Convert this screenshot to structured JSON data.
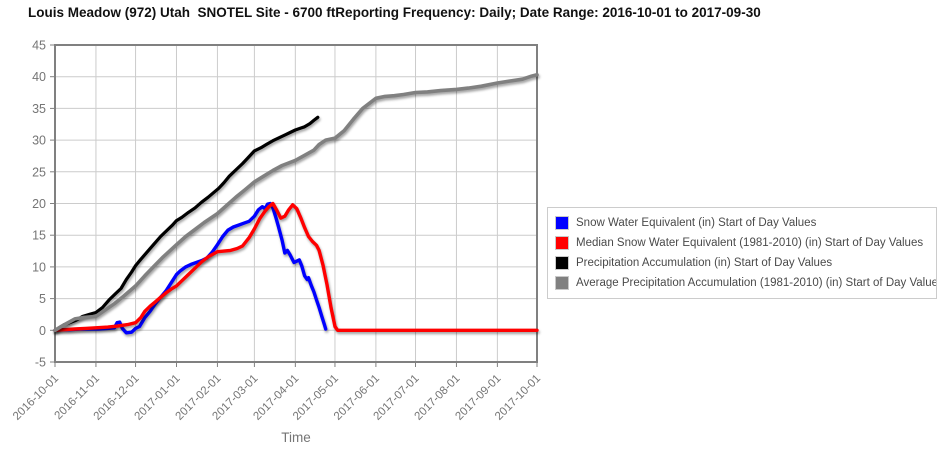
{
  "title": "Louis Meadow (972) Utah  SNOTEL Site - 6700 ftReporting Frequency: Daily; Date Range: 2016-10-01 to 2017-09-30",
  "chart_data": {
    "type": "line",
    "xlabel": "Time",
    "ylabel": "",
    "xlim": [
      "2016-10-01",
      "2017-10-01"
    ],
    "ylim": [
      -5,
      45
    ],
    "grid": true,
    "legend_position": "right",
    "x_ticks": [
      "2016-10-01",
      "2016-11-01",
      "2016-12-01",
      "2017-01-01",
      "2017-02-01",
      "2017-03-01",
      "2017-04-01",
      "2017-05-01",
      "2017-06-01",
      "2017-07-01",
      "2017-08-01",
      "2017-09-01",
      "2017-10-01"
    ],
    "y_ticks": [
      45,
      40,
      35,
      30,
      25,
      20,
      15,
      10,
      5,
      0,
      -5
    ],
    "colors": {
      "grid": "#cccccc",
      "axis_border": "#808080",
      "tick_label": "#757575",
      "legend_text": "#4a4a4a"
    },
    "series": [
      {
        "name": "Snow Water Equivalent (in) Start of Day Values",
        "color": "#0000ff",
        "width": 3.4,
        "points": [
          [
            "2016-10-01",
            0
          ],
          [
            "2016-10-06",
            0.1
          ],
          [
            "2016-10-12",
            0.1
          ],
          [
            "2016-10-20",
            0.2
          ],
          [
            "2016-10-27",
            0.2
          ],
          [
            "2016-11-03",
            0.2
          ],
          [
            "2016-11-10",
            0.3
          ],
          [
            "2016-11-15",
            0.4
          ],
          [
            "2016-11-17",
            1.2
          ],
          [
            "2016-11-19",
            1.3
          ],
          [
            "2016-11-21",
            0.3
          ],
          [
            "2016-11-24",
            -0.4
          ],
          [
            "2016-11-28",
            -0.3
          ],
          [
            "2016-12-01",
            0.3
          ],
          [
            "2016-12-04",
            0.6
          ],
          [
            "2016-12-08",
            2.0
          ],
          [
            "2016-12-12",
            3.0
          ],
          [
            "2016-12-16",
            4.2
          ],
          [
            "2016-12-20",
            5.2
          ],
          [
            "2016-12-24",
            6.2
          ],
          [
            "2016-12-28",
            7.5
          ],
          [
            "2017-01-01",
            8.8
          ],
          [
            "2017-01-04",
            9.4
          ],
          [
            "2017-01-08",
            10.0
          ],
          [
            "2017-01-12",
            10.4
          ],
          [
            "2017-01-16",
            10.7
          ],
          [
            "2017-01-20",
            11.0
          ],
          [
            "2017-01-24",
            11.4
          ],
          [
            "2017-01-28",
            12.3
          ],
          [
            "2017-02-01",
            13.5
          ],
          [
            "2017-02-05",
            14.8
          ],
          [
            "2017-02-09",
            15.8
          ],
          [
            "2017-02-13",
            16.3
          ],
          [
            "2017-02-17",
            16.6
          ],
          [
            "2017-02-21",
            16.9
          ],
          [
            "2017-02-25",
            17.2
          ],
          [
            "2017-03-01",
            18.0
          ],
          [
            "2017-03-04",
            19.0
          ],
          [
            "2017-03-07",
            19.5
          ],
          [
            "2017-03-09",
            19.2
          ],
          [
            "2017-03-11",
            19.9
          ],
          [
            "2017-03-13",
            20.0
          ],
          [
            "2017-03-15",
            19.3
          ],
          [
            "2017-03-17",
            18.0
          ],
          [
            "2017-03-19",
            16.5
          ],
          [
            "2017-03-22",
            14.2
          ],
          [
            "2017-03-24",
            12.2
          ],
          [
            "2017-03-26",
            12.6
          ],
          [
            "2017-03-28",
            11.9
          ],
          [
            "2017-03-31",
            10.7
          ],
          [
            "2017-04-02",
            10.9
          ],
          [
            "2017-04-04",
            11.1
          ],
          [
            "2017-04-06",
            10.1
          ],
          [
            "2017-04-08",
            8.6
          ],
          [
            "2017-04-10",
            8.0
          ],
          [
            "2017-04-11",
            8.3
          ],
          [
            "2017-04-13",
            7.1
          ],
          [
            "2017-04-15",
            6.1
          ],
          [
            "2017-04-17",
            4.8
          ],
          [
            "2017-04-19",
            3.6
          ],
          [
            "2017-04-21",
            2.2
          ],
          [
            "2017-04-23",
            0.9
          ],
          [
            "2017-04-24",
            0.2
          ]
        ]
      },
      {
        "name": "Median Snow Water Equivalent (1981-2010) (in) Start of Day Values",
        "color": "#ff0000",
        "width": 3.4,
        "points": [
          [
            "2016-10-01",
            0
          ],
          [
            "2016-10-08",
            0.1
          ],
          [
            "2016-10-16",
            0.2
          ],
          [
            "2016-10-24",
            0.3
          ],
          [
            "2016-11-01",
            0.4
          ],
          [
            "2016-11-10",
            0.5
          ],
          [
            "2016-11-18",
            0.7
          ],
          [
            "2016-11-25",
            0.9
          ],
          [
            "2016-12-01",
            1.2
          ],
          [
            "2016-12-05",
            2.0
          ],
          [
            "2016-12-08",
            3.0
          ],
          [
            "2016-12-12",
            3.8
          ],
          [
            "2016-12-16",
            4.5
          ],
          [
            "2016-12-20",
            5.2
          ],
          [
            "2016-12-24",
            5.9
          ],
          [
            "2016-12-28",
            6.5
          ],
          [
            "2017-01-01",
            7.0
          ],
          [
            "2017-01-05",
            7.8
          ],
          [
            "2017-01-10",
            8.8
          ],
          [
            "2017-01-15",
            9.8
          ],
          [
            "2017-01-20",
            10.8
          ],
          [
            "2017-01-25",
            11.6
          ],
          [
            "2017-02-01",
            12.4
          ],
          [
            "2017-02-06",
            12.5
          ],
          [
            "2017-02-11",
            12.6
          ],
          [
            "2017-02-16",
            12.9
          ],
          [
            "2017-02-20",
            13.3
          ],
          [
            "2017-02-25",
            14.6
          ],
          [
            "2017-03-01",
            16.0
          ],
          [
            "2017-03-05",
            17.6
          ],
          [
            "2017-03-09",
            18.8
          ],
          [
            "2017-03-12",
            19.5
          ],
          [
            "2017-03-15",
            20.0
          ],
          [
            "2017-03-18",
            18.9
          ],
          [
            "2017-03-21",
            17.7
          ],
          [
            "2017-03-24",
            18.0
          ],
          [
            "2017-03-27",
            19.0
          ],
          [
            "2017-03-30",
            19.8
          ],
          [
            "2017-04-02",
            19.2
          ],
          [
            "2017-04-05",
            17.8
          ],
          [
            "2017-04-08",
            16.2
          ],
          [
            "2017-04-11",
            14.8
          ],
          [
            "2017-04-14",
            14.0
          ],
          [
            "2017-04-17",
            13.4
          ],
          [
            "2017-04-19",
            12.6
          ],
          [
            "2017-04-22",
            10.2
          ],
          [
            "2017-04-25",
            7.2
          ],
          [
            "2017-04-28",
            3.6
          ],
          [
            "2017-05-01",
            0.6
          ],
          [
            "2017-05-03",
            0
          ],
          [
            "2017-06-01",
            0
          ],
          [
            "2017-07-01",
            0
          ],
          [
            "2017-08-01",
            0
          ],
          [
            "2017-09-01",
            0
          ],
          [
            "2017-10-01",
            0
          ]
        ]
      },
      {
        "name": "Precipitation Accumulation (in) Start of Day Values",
        "color": "#000000",
        "width": 3.2,
        "points": [
          [
            "2016-10-01",
            0
          ],
          [
            "2016-10-04",
            0.4
          ],
          [
            "2016-10-08",
            0.9
          ],
          [
            "2016-10-12",
            1.2
          ],
          [
            "2016-10-17",
            1.6
          ],
          [
            "2016-10-22",
            2.2
          ],
          [
            "2016-10-27",
            2.5
          ],
          [
            "2016-11-01",
            2.8
          ],
          [
            "2016-11-06",
            3.6
          ],
          [
            "2016-11-11",
            4.8
          ],
          [
            "2016-11-16",
            5.8
          ],
          [
            "2016-11-20",
            6.6
          ],
          [
            "2016-11-24",
            8.0
          ],
          [
            "2016-11-28",
            9.2
          ],
          [
            "2016-12-01",
            10.2
          ],
          [
            "2016-12-05",
            11.2
          ],
          [
            "2016-12-10",
            12.4
          ],
          [
            "2016-12-15",
            13.6
          ],
          [
            "2016-12-20",
            14.8
          ],
          [
            "2016-12-25",
            15.8
          ],
          [
            "2016-12-29",
            16.6
          ],
          [
            "2017-01-01",
            17.3
          ],
          [
            "2017-01-05",
            17.8
          ],
          [
            "2017-01-10",
            18.6
          ],
          [
            "2017-01-15",
            19.3
          ],
          [
            "2017-01-20",
            20.2
          ],
          [
            "2017-01-25",
            21.0
          ],
          [
            "2017-01-29",
            21.7
          ],
          [
            "2017-02-02",
            22.4
          ],
          [
            "2017-02-06",
            23.3
          ],
          [
            "2017-02-10",
            24.3
          ],
          [
            "2017-02-15",
            25.3
          ],
          [
            "2017-02-20",
            26.3
          ],
          [
            "2017-02-25",
            27.4
          ],
          [
            "2017-03-01",
            28.3
          ],
          [
            "2017-03-06",
            28.8
          ],
          [
            "2017-03-10",
            29.3
          ],
          [
            "2017-03-15",
            29.9
          ],
          [
            "2017-03-20",
            30.4
          ],
          [
            "2017-03-25",
            30.9
          ],
          [
            "2017-03-28",
            31.2
          ],
          [
            "2017-04-01",
            31.6
          ],
          [
            "2017-04-05",
            31.9
          ],
          [
            "2017-04-08",
            32.1
          ],
          [
            "2017-04-12",
            32.6
          ],
          [
            "2017-04-15",
            33.1
          ],
          [
            "2017-04-18",
            33.6
          ]
        ]
      },
      {
        "name": "Average Precipitation Accumulation (1981-2010) (in) Start of Day Values",
        "color": "#808080",
        "width": 3.6,
        "points": [
          [
            "2016-10-01",
            0
          ],
          [
            "2016-10-05",
            0.5
          ],
          [
            "2016-10-10",
            1.1
          ],
          [
            "2016-10-16",
            1.8
          ],
          [
            "2016-10-22",
            2.0
          ],
          [
            "2016-11-01",
            2.2
          ],
          [
            "2016-11-08",
            3.2
          ],
          [
            "2016-11-15",
            4.2
          ],
          [
            "2016-11-22",
            5.4
          ],
          [
            "2016-12-01",
            7.0
          ],
          [
            "2016-12-08",
            8.6
          ],
          [
            "2016-12-15",
            10.1
          ],
          [
            "2016-12-22",
            11.6
          ],
          [
            "2017-01-01",
            13.5
          ],
          [
            "2017-01-08",
            14.8
          ],
          [
            "2017-01-15",
            15.9
          ],
          [
            "2017-01-22",
            17.0
          ],
          [
            "2017-02-01",
            18.4
          ],
          [
            "2017-02-08",
            19.7
          ],
          [
            "2017-02-15",
            21.0
          ],
          [
            "2017-02-22",
            22.2
          ],
          [
            "2017-03-01",
            23.4
          ],
          [
            "2017-03-08",
            24.3
          ],
          [
            "2017-03-15",
            25.2
          ],
          [
            "2017-03-22",
            26.0
          ],
          [
            "2017-04-01",
            26.8
          ],
          [
            "2017-04-08",
            27.6
          ],
          [
            "2017-04-15",
            28.4
          ],
          [
            "2017-04-19",
            29.3
          ],
          [
            "2017-04-24",
            30.0
          ],
          [
            "2017-05-01",
            30.3
          ],
          [
            "2017-05-08",
            31.5
          ],
          [
            "2017-05-15",
            33.3
          ],
          [
            "2017-05-22",
            35.0
          ],
          [
            "2017-06-01",
            36.6
          ],
          [
            "2017-06-08",
            36.9
          ],
          [
            "2017-06-15",
            37.0
          ],
          [
            "2017-06-22",
            37.2
          ],
          [
            "2017-07-01",
            37.5
          ],
          [
            "2017-07-10",
            37.6
          ],
          [
            "2017-07-20",
            37.8
          ],
          [
            "2017-08-01",
            38.0
          ],
          [
            "2017-08-10",
            38.2
          ],
          [
            "2017-08-20",
            38.5
          ],
          [
            "2017-09-01",
            39.0
          ],
          [
            "2017-09-10",
            39.3
          ],
          [
            "2017-09-20",
            39.6
          ],
          [
            "2017-09-27",
            40.1
          ],
          [
            "2017-10-01",
            40.3
          ]
        ]
      }
    ]
  }
}
